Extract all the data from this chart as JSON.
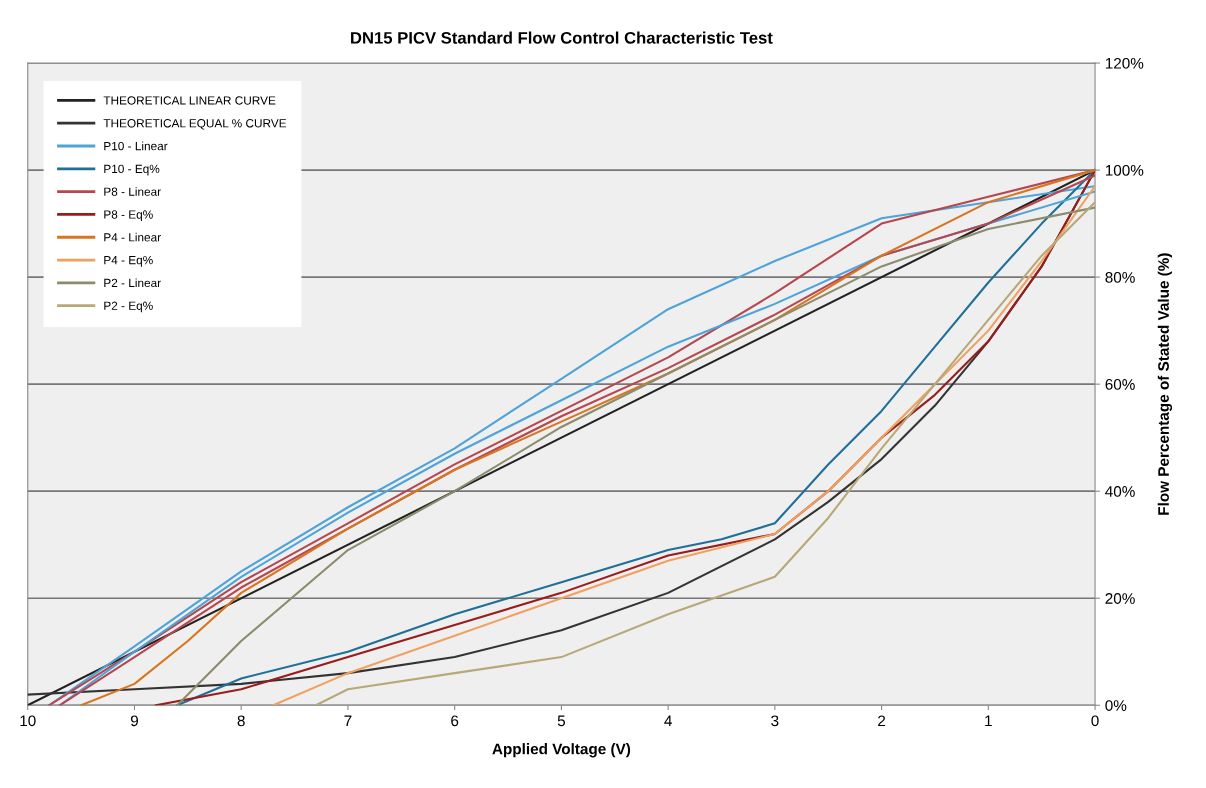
{
  "chart_data": {
    "type": "line",
    "title": "DN15 PICV Standard Flow Control Characteristic Test",
    "xlabel": "Applied Voltage (V)",
    "ylabel": "Flow Percentage of Stated Value (%)",
    "xlim": [
      10,
      0
    ],
    "xticks": [
      10,
      9,
      8,
      7,
      6,
      5,
      4,
      3,
      2,
      1,
      0
    ],
    "ylim": [
      0,
      120
    ],
    "yticks": [
      {
        "value": 0,
        "label": "0%"
      },
      {
        "value": 20,
        "label": "20%"
      },
      {
        "value": 40,
        "label": "40%"
      },
      {
        "value": 60,
        "label": "60%"
      },
      {
        "value": 80,
        "label": "80%"
      },
      {
        "value": 100,
        "label": "100%"
      },
      {
        "value": 120,
        "label": "120%"
      }
    ],
    "grid": "y",
    "legend": "top left",
    "marker": "none",
    "line_style": "solid",
    "series": [
      {
        "name": "THEORETICAL LINEAR CURVE",
        "color": "#222222",
        "x": [
          10,
          0
        ],
        "values": [
          0,
          100
        ]
      },
      {
        "name": "THEORETICAL EQUAL % CURVE",
        "color": "#333333",
        "x": [
          10,
          9,
          8,
          7,
          6,
          5,
          4,
          3,
          2.5,
          2,
          1.5,
          1,
          0.5,
          0
        ],
        "values": [
          2,
          3,
          4,
          6,
          9,
          14,
          21,
          31,
          38,
          46,
          56,
          68,
          82,
          100
        ]
      },
      {
        "name": "P10 - Linear",
        "color": "#4ea3d8",
        "x": [
          9.8,
          9,
          8,
          7,
          6,
          5,
          4,
          3,
          2,
          1,
          0
        ],
        "values": [
          0,
          11,
          25,
          37,
          48,
          61,
          74,
          83,
          91,
          94,
          97
        ]
      },
      {
        "name": "P10 - Eq%",
        "color": "#1f6f97",
        "x": [
          8.6,
          8,
          7,
          6,
          5,
          4,
          3.5,
          3,
          2.5,
          2,
          1.5,
          1,
          0.5,
          0
        ],
        "values": [
          0,
          5,
          10,
          17,
          23,
          29,
          31,
          34,
          45,
          55,
          67,
          79,
          90,
          100
        ]
      },
      {
        "name": "P8 - Linear",
        "color": "#b5474f",
        "x": [
          9.8,
          9,
          8,
          7,
          6,
          5,
          4,
          3,
          2,
          1,
          0
        ],
        "values": [
          0,
          10,
          23,
          34,
          45,
          55,
          65,
          77,
          90,
          95,
          100
        ]
      },
      {
        "name": "P8 - Eq%",
        "color": "#9a1c1c",
        "x": [
          8.8,
          8,
          7,
          6,
          5,
          4,
          3,
          2.5,
          2,
          1.5,
          1,
          0.5,
          0
        ],
        "values": [
          0,
          3,
          9,
          15,
          21,
          28,
          32,
          40,
          50,
          58,
          68,
          82,
          100
        ]
      },
      {
        "color": "#4ea3d8",
        "x": [
          9.7,
          9,
          8,
          7,
          6,
          5,
          4,
          3,
          2,
          1,
          0
        ],
        "values": [
          0,
          10,
          24,
          36,
          47,
          57,
          67,
          75,
          84,
          90,
          96
        ]
      },
      {
        "color": "#b5474f",
        "x": [
          9.7,
          9,
          8,
          7,
          6,
          5,
          4,
          3,
          2,
          1,
          0
        ],
        "values": [
          0,
          9,
          22,
          33,
          44,
          54,
          63,
          73,
          84,
          90,
          99
        ]
      },
      {
        "name": "P4 - Linear",
        "color": "#d9751f",
        "x": [
          9.5,
          9,
          8.5,
          8,
          7,
          6,
          5,
          4,
          3,
          2,
          1,
          0
        ],
        "values": [
          0,
          4,
          12,
          21,
          33,
          44,
          53,
          62,
          72,
          84,
          94,
          100
        ]
      },
      {
        "name": "P4 - Eq%",
        "color": "#f0a060",
        "x": [
          7.7,
          7,
          6,
          5,
          4,
          3,
          2.5,
          2,
          1.5,
          1,
          0.5,
          0
        ],
        "values": [
          0,
          6,
          13,
          20,
          27,
          32,
          40,
          50,
          60,
          70,
          83,
          97
        ]
      },
      {
        "name": "P2 - Linear",
        "color": "#8c8c6c",
        "x": [
          8.6,
          8,
          7,
          6,
          5,
          4,
          3,
          2,
          1,
          0
        ],
        "values": [
          0,
          12,
          29,
          40,
          52,
          62,
          72,
          82,
          89,
          93
        ]
      },
      {
        "name": "P2 - Eq%",
        "color": "#b8a878",
        "x": [
          7.3,
          7,
          6,
          5,
          4,
          3,
          2.5,
          2,
          1.5,
          1,
          0.5,
          0
        ],
        "values": [
          0,
          3,
          6,
          9,
          17,
          24,
          35,
          48,
          60,
          72,
          84,
          94
        ]
      }
    ]
  }
}
